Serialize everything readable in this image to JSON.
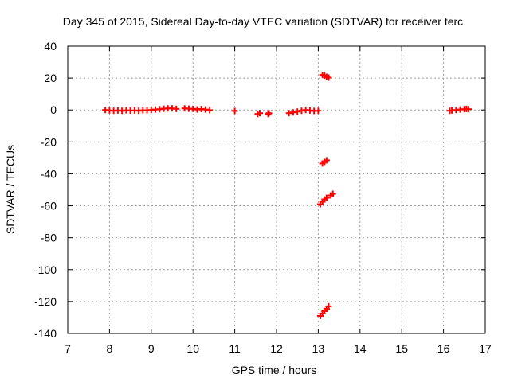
{
  "chart_data": {
    "type": "scatter",
    "title": "Day 345 of 2015, Sidereal Day-to-day VTEC variation (SDTVAR) for receiver terc",
    "xlabel": "GPS time / hours",
    "ylabel": "SDTVAR / TECUs",
    "xlim": [
      7,
      17
    ],
    "ylim": [
      -140,
      40
    ],
    "xticks": [
      "7",
      "8",
      "9",
      "10",
      "11",
      "12",
      "13",
      "14",
      "15",
      "16",
      "17"
    ],
    "yticks": [
      "40",
      "20",
      "0",
      "-20",
      "-40",
      "-60",
      "-80",
      "-100",
      "-120",
      "-140"
    ],
    "grid": true,
    "legend": "none",
    "marker": "plus",
    "marker_color": "#ff0000",
    "series": [
      {
        "values": [
          [
            7.9,
            0.0
          ],
          [
            8.0,
            -0.3
          ],
          [
            8.1,
            -0.5
          ],
          [
            8.2,
            -0.3
          ],
          [
            8.3,
            -0.5
          ],
          [
            8.4,
            -0.2
          ],
          [
            8.5,
            -0.4
          ],
          [
            8.6,
            -0.3
          ],
          [
            8.7,
            -0.5
          ],
          [
            8.8,
            -0.2
          ],
          [
            8.9,
            -0.2
          ],
          [
            9.0,
            0.0
          ],
          [
            9.1,
            0.3
          ],
          [
            9.2,
            0.5
          ],
          [
            9.3,
            0.8
          ],
          [
            9.4,
            1.0
          ],
          [
            9.5,
            1.0
          ],
          [
            9.6,
            0.7
          ],
          [
            9.8,
            1.0
          ],
          [
            9.9,
            0.8
          ],
          [
            10.0,
            0.7
          ],
          [
            10.1,
            0.3
          ],
          [
            10.2,
            0.6
          ],
          [
            10.3,
            0.3
          ],
          [
            10.4,
            -0.1
          ],
          [
            11.0,
            -0.6
          ],
          [
            11.55,
            -2.5
          ],
          [
            11.6,
            -2.0
          ],
          [
            11.8,
            -2.5
          ],
          [
            11.82,
            -2.0
          ],
          [
            12.3,
            -2.0
          ],
          [
            12.4,
            -1.5
          ],
          [
            12.5,
            -1.0
          ],
          [
            12.6,
            -0.5
          ],
          [
            12.7,
            0.0
          ],
          [
            12.8,
            -0.3
          ],
          [
            12.9,
            -0.6
          ],
          [
            13.0,
            -0.5
          ],
          [
            13.1,
            22.0
          ],
          [
            13.15,
            21.5
          ],
          [
            13.2,
            20.8
          ],
          [
            13.25,
            20.3
          ],
          [
            13.1,
            -33.5
          ],
          [
            13.15,
            -32.5
          ],
          [
            13.2,
            -31.5
          ],
          [
            13.05,
            -59.0
          ],
          [
            13.1,
            -57.5
          ],
          [
            13.15,
            -56.0
          ],
          [
            13.2,
            -55.0
          ],
          [
            13.3,
            -53.5
          ],
          [
            13.35,
            -52.5
          ],
          [
            13.05,
            -129.0
          ],
          [
            13.1,
            -127.5
          ],
          [
            13.15,
            -126.0
          ],
          [
            13.2,
            -124.5
          ],
          [
            13.25,
            -123.0
          ],
          [
            16.15,
            -0.5
          ],
          [
            16.2,
            -0.3
          ],
          [
            16.3,
            0.0
          ],
          [
            16.4,
            0.3
          ],
          [
            16.5,
            0.5
          ],
          [
            16.55,
            0.7
          ],
          [
            16.6,
            0.5
          ]
        ]
      }
    ]
  }
}
